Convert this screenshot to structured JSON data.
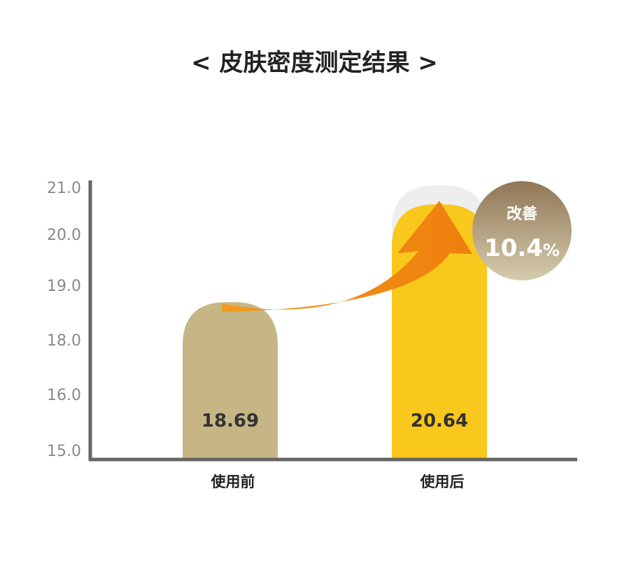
{
  "chart_data": {
    "type": "bar",
    "title": "< 皮肤密度测定结果 >",
    "categories": [
      "使用前",
      "使用后"
    ],
    "values": [
      18.69,
      20.64
    ],
    "value_labels": [
      "18.69",
      "20.64"
    ],
    "y_ticks": [
      15.0,
      16.0,
      18.0,
      19.0,
      20.0,
      21.0
    ],
    "y_tick_labels": [
      "15.0",
      "16.0",
      "18.0",
      "19.0",
      "20.0",
      "21.0"
    ],
    "ylim": [
      15.0,
      21.0
    ],
    "y_axis_scale": "non-linear (tick spacing uneven)",
    "grid": false,
    "legend": "none",
    "annotation": {
      "label": "改善",
      "value": "10.4",
      "unit": "%"
    },
    "colors": {
      "before_bar": "#c6b685",
      "after_bar": "#f9c81c",
      "after_bar_shadow": "#eeeeee",
      "arrow": "#f28a12",
      "badge_top": "#8f7656",
      "badge_bottom": "#d6ccae",
      "axis": "#666666"
    }
  }
}
